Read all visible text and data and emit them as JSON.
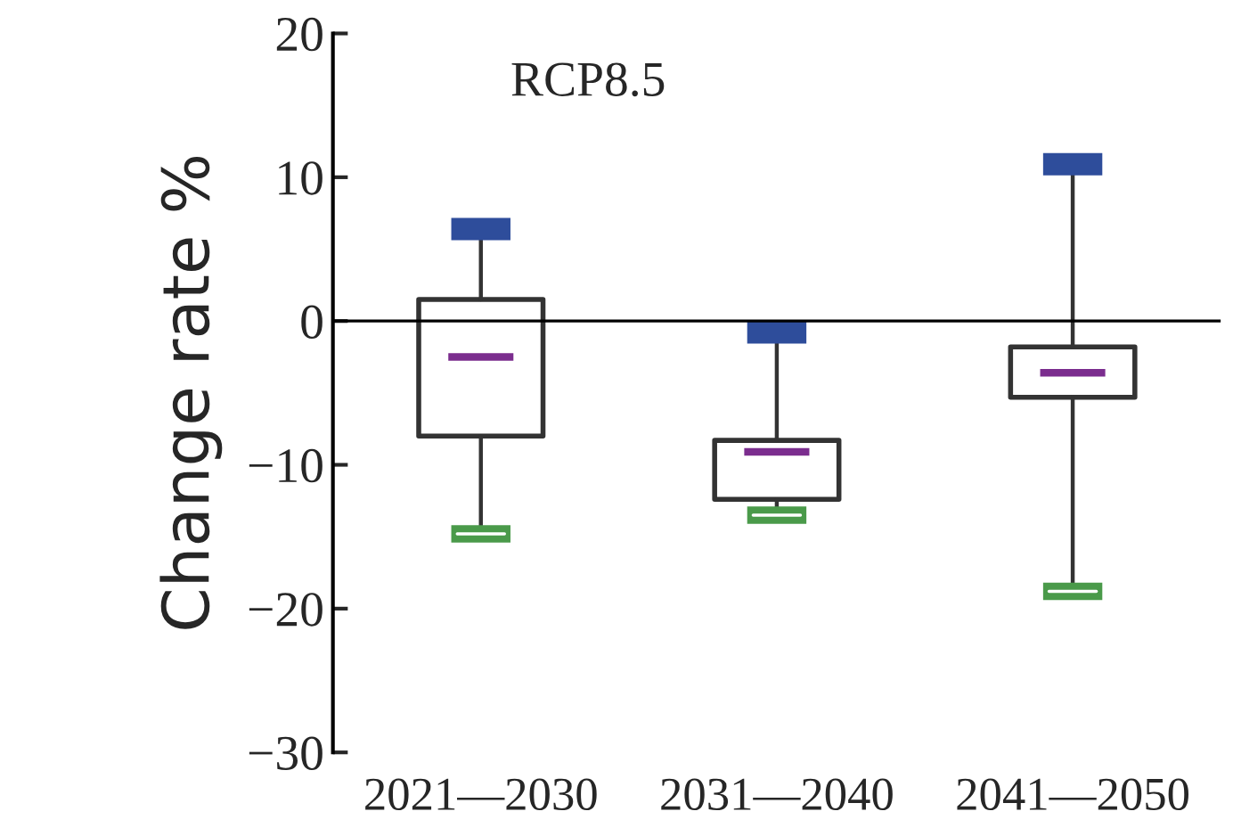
{
  "chart_data": {
    "type": "box",
    "ylabel": "Change rate %",
    "annotations": [
      "RCP8.5"
    ],
    "categories": [
      "2021—2030",
      "2031—2040",
      "2041—2050"
    ],
    "boxes": [
      {
        "low": -14.8,
        "q1": -8.0,
        "median": -2.5,
        "q3": 1.5,
        "high": 6.4
      },
      {
        "low": -13.5,
        "q1": -12.4,
        "median": -9.1,
        "q3": -8.3,
        "high": -0.8
      },
      {
        "low": -18.8,
        "q1": -5.3,
        "median": -3.6,
        "q3": -1.8,
        "high": 10.9
      }
    ],
    "ylim": [
      -30,
      20
    ],
    "yticks": [
      {
        "value": -30,
        "label": "−30"
      },
      {
        "value": -20,
        "label": "−20"
      },
      {
        "value": -10,
        "label": "−10"
      },
      0,
      10,
      20
    ],
    "ref_lines": [
      {
        "axis": "y",
        "value": 0,
        "color": "#000000"
      }
    ],
    "grid": false,
    "legend": false
  }
}
